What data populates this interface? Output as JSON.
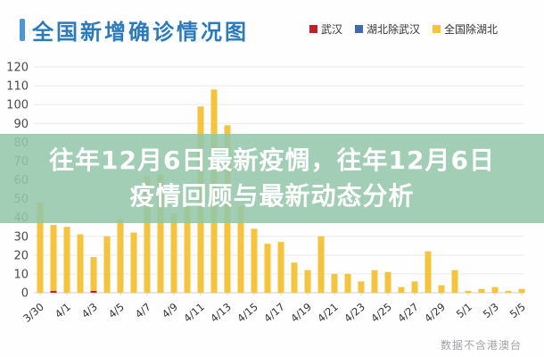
{
  "header": {
    "title": "全国新增确诊情况图",
    "legend": [
      {
        "label": "武汉",
        "color": "#bf2126"
      },
      {
        "label": "湖北除武汉",
        "color": "#4169b0"
      },
      {
        "label": "全国除湖北",
        "color": "#f5c33c"
      }
    ]
  },
  "overlay": {
    "line1": "往年12月6日最新疫惆，往年12月6日",
    "line2": "疫情回顾与最新动态分析"
  },
  "footer": {
    "note": "数据不含港澳台"
  },
  "chart_data": {
    "type": "bar",
    "stacked": true,
    "title": "全国新增确诊情况图",
    "categories": [
      "3/30",
      "3/31",
      "4/1",
      "4/2",
      "4/3",
      "4/4",
      "4/5",
      "4/6",
      "4/7",
      "4/8",
      "4/9",
      "4/10",
      "4/11",
      "4/12",
      "4/13",
      "4/14",
      "4/15",
      "4/16",
      "4/17",
      "4/18",
      "4/19",
      "4/20",
      "4/21",
      "4/22",
      "4/23",
      "4/24",
      "4/25",
      "4/26",
      "4/27",
      "4/28",
      "4/29",
      "4/30",
      "5/1",
      "5/2",
      "5/3",
      "5/4",
      "5/5"
    ],
    "series": [
      {
        "name": "武汉",
        "color": "#bf2126",
        "values": [
          0,
          1,
          0,
          0,
          1,
          0,
          0,
          0,
          0,
          0,
          0,
          0,
          0,
          0,
          0,
          0,
          0,
          0,
          0,
          0,
          0,
          0,
          0,
          0,
          0,
          0,
          0,
          0,
          0,
          0,
          0,
          0,
          0,
          0,
          0,
          0,
          0
        ]
      },
      {
        "name": "湖北除武汉",
        "color": "#4169b0",
        "values": [
          0,
          0,
          0,
          0,
          0,
          0,
          0,
          0,
          0,
          0,
          0,
          0,
          0,
          0,
          0,
          0,
          0,
          0,
          0,
          0,
          0,
          0,
          0,
          0,
          0,
          0,
          0,
          0,
          0,
          0,
          0,
          0,
          0,
          0,
          0,
          0,
          0
        ]
      },
      {
        "name": "全国除湖北",
        "color": "#f5c33c",
        "values": [
          48,
          35,
          35,
          31,
          18,
          30,
          39,
          32,
          62,
          63,
          42,
          46,
          99,
          108,
          89,
          46,
          34,
          26,
          27,
          16,
          12,
          30,
          10,
          10,
          6,
          12,
          11,
          3,
          6,
          22,
          4,
          12,
          1,
          2,
          3,
          1,
          2
        ]
      }
    ],
    "x_tick_labels": [
      "3/30",
      "4/1",
      "4/3",
      "4/5",
      "4/7",
      "4/9",
      "4/11",
      "4/13",
      "4/15",
      "4/17",
      "4/19",
      "4/21",
      "4/23",
      "4/25",
      "4/27",
      "4/29",
      "5/1",
      "5/3",
      "5/5"
    ],
    "x_labels_every": 2,
    "ylim": [
      0,
      120
    ],
    "ytick_step": 10,
    "grid": true,
    "legend_position": "top-right",
    "footnote": "数据不含港澳台"
  }
}
